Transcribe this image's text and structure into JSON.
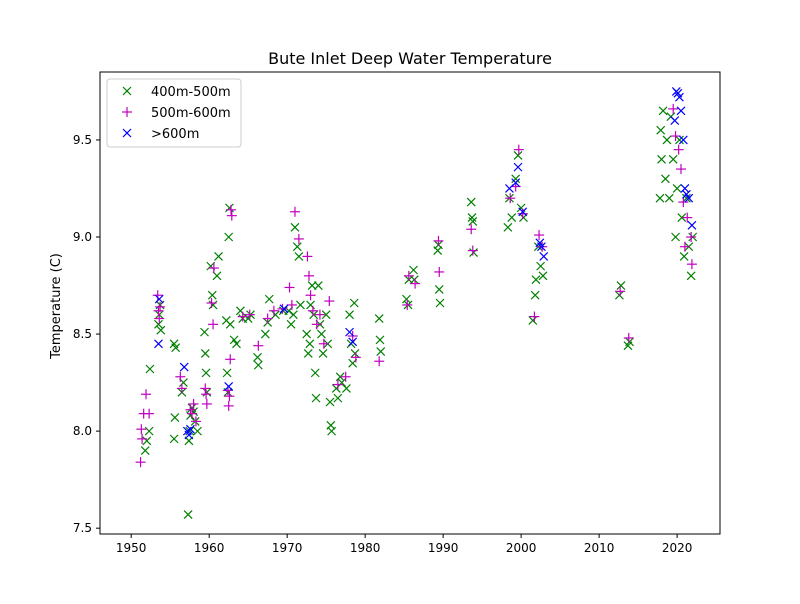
{
  "chart_data": {
    "type": "scatter",
    "title": "Bute Inlet Deep Water Temperature",
    "xlabel": "",
    "ylabel": "Temperature (C)",
    "xlim": [
      1946.0,
      2025.5
    ],
    "ylim": [
      7.47,
      9.85
    ],
    "xticks": [
      "1950",
      "1960",
      "1970",
      "1980",
      "1990",
      "2000",
      "2010",
      "2020"
    ],
    "yticks": [
      "7.5",
      "8.0",
      "8.5",
      "9.0",
      "9.5"
    ],
    "grid": false,
    "legend_position": "top-left",
    "series": [
      {
        "name": "400m-500m",
        "marker": "x",
        "color": "#008000",
        "points": [
          [
            1951.8,
            7.9
          ],
          [
            1952.0,
            7.95
          ],
          [
            1952.3,
            8.0
          ],
          [
            1952.4,
            8.32
          ],
          [
            1953.5,
            8.55
          ],
          [
            1953.6,
            8.6
          ],
          [
            1953.7,
            8.65
          ],
          [
            1953.8,
            8.52
          ],
          [
            1955.5,
            8.45
          ],
          [
            1955.7,
            8.43
          ],
          [
            1955.5,
            7.96
          ],
          [
            1955.6,
            8.07
          ],
          [
            1956.5,
            8.2
          ],
          [
            1956.7,
            8.25
          ],
          [
            1957.3,
            7.57
          ],
          [
            1957.4,
            7.95
          ],
          [
            1957.5,
            8.0
          ],
          [
            1957.6,
            8.08
          ],
          [
            1957.8,
            8.12
          ],
          [
            1958.0,
            8.1
          ],
          [
            1958.2,
            8.05
          ],
          [
            1958.5,
            8.0
          ],
          [
            1959.4,
            8.51
          ],
          [
            1959.5,
            8.4
          ],
          [
            1959.6,
            8.3
          ],
          [
            1959.7,
            8.2
          ],
          [
            1960.2,
            8.85
          ],
          [
            1960.4,
            8.7
          ],
          [
            1960.5,
            8.65
          ],
          [
            1961.0,
            8.8
          ],
          [
            1961.2,
            8.9
          ],
          [
            1962.2,
            8.57
          ],
          [
            1962.3,
            8.3
          ],
          [
            1962.4,
            8.2
          ],
          [
            1962.5,
            9.0
          ],
          [
            1962.6,
            9.15
          ],
          [
            1962.7,
            8.55
          ],
          [
            1963.2,
            8.47
          ],
          [
            1963.5,
            8.45
          ],
          [
            1964.0,
            8.62
          ],
          [
            1964.3,
            8.58
          ],
          [
            1965.0,
            8.58
          ],
          [
            1965.3,
            8.6
          ],
          [
            1966.2,
            8.38
          ],
          [
            1966.3,
            8.34
          ],
          [
            1967.2,
            8.5
          ],
          [
            1967.5,
            8.56
          ],
          [
            1967.7,
            8.68
          ],
          [
            1968.5,
            8.6
          ],
          [
            1969.5,
            8.62
          ],
          [
            1970.2,
            8.62
          ],
          [
            1970.5,
            8.55
          ],
          [
            1970.8,
            8.6
          ],
          [
            1971.0,
            9.05
          ],
          [
            1971.3,
            8.95
          ],
          [
            1971.5,
            8.9
          ],
          [
            1971.7,
            8.65
          ],
          [
            1972.5,
            8.5
          ],
          [
            1972.7,
            8.4
          ],
          [
            1972.9,
            8.45
          ],
          [
            1973.0,
            8.65
          ],
          [
            1973.2,
            8.75
          ],
          [
            1973.4,
            8.6
          ],
          [
            1973.6,
            8.3
          ],
          [
            1973.7,
            8.17
          ],
          [
            1974.0,
            8.75
          ],
          [
            1974.2,
            8.55
          ],
          [
            1974.4,
            8.5
          ],
          [
            1974.6,
            8.4
          ],
          [
            1975.0,
            8.6
          ],
          [
            1975.2,
            8.45
          ],
          [
            1975.5,
            8.15
          ],
          [
            1975.6,
            8.03
          ],
          [
            1975.7,
            8.0
          ],
          [
            1976.3,
            8.22
          ],
          [
            1976.5,
            8.17
          ],
          [
            1976.8,
            8.28
          ],
          [
            1977.0,
            8.25
          ],
          [
            1977.6,
            8.22
          ],
          [
            1978.0,
            8.6
          ],
          [
            1978.2,
            8.45
          ],
          [
            1978.4,
            8.35
          ],
          [
            1978.6,
            8.66
          ],
          [
            1978.7,
            8.4
          ],
          [
            1981.8,
            8.58
          ],
          [
            1981.9,
            8.47
          ],
          [
            1982.0,
            8.41
          ],
          [
            1985.3,
            8.68
          ],
          [
            1985.5,
            8.65
          ],
          [
            1985.6,
            8.78
          ],
          [
            1986.2,
            8.83
          ],
          [
            1986.3,
            8.78
          ],
          [
            1989.3,
            8.93
          ],
          [
            1989.4,
            8.96
          ],
          [
            1989.5,
            8.73
          ],
          [
            1989.6,
            8.66
          ],
          [
            1993.6,
            9.18
          ],
          [
            1993.7,
            9.1
          ],
          [
            1993.8,
            9.08
          ],
          [
            1993.9,
            8.92
          ],
          [
            1998.3,
            9.05
          ],
          [
            1998.5,
            9.2
          ],
          [
            1998.8,
            9.1
          ],
          [
            1999.3,
            9.3
          ],
          [
            1999.6,
            9.42
          ],
          [
            2000.0,
            9.15
          ],
          [
            2000.3,
            9.1
          ],
          [
            2001.5,
            8.57
          ],
          [
            2001.8,
            8.7
          ],
          [
            2001.9,
            8.78
          ],
          [
            2002.2,
            8.95
          ],
          [
            2002.5,
            8.85
          ],
          [
            2002.8,
            8.8
          ],
          [
            2012.6,
            8.7
          ],
          [
            2012.8,
            8.75
          ],
          [
            2013.7,
            8.44
          ],
          [
            2013.9,
            8.46
          ],
          [
            2017.8,
            9.2
          ],
          [
            2017.9,
            9.55
          ],
          [
            2018.0,
            9.4
          ],
          [
            2018.2,
            9.65
          ],
          [
            2018.5,
            9.3
          ],
          [
            2018.7,
            9.5
          ],
          [
            2019.0,
            9.2
          ],
          [
            2019.2,
            9.62
          ],
          [
            2019.5,
            9.4
          ],
          [
            2019.8,
            9.0
          ],
          [
            2020.0,
            9.25
          ],
          [
            2020.3,
            9.5
          ],
          [
            2020.6,
            9.1
          ],
          [
            2020.9,
            8.9
          ],
          [
            2021.2,
            9.2
          ],
          [
            2021.5,
            8.95
          ],
          [
            2021.8,
            8.8
          ],
          [
            2022.0,
            9.0
          ]
        ]
      },
      {
        "name": "500m-600m",
        "marker": "+",
        "color": "#bf00bf",
        "points": [
          [
            1951.2,
            7.84
          ],
          [
            1951.3,
            8.01
          ],
          [
            1951.4,
            7.96
          ],
          [
            1951.6,
            8.09
          ],
          [
            1951.9,
            8.19
          ],
          [
            1952.3,
            8.09
          ],
          [
            1953.4,
            8.7
          ],
          [
            1953.5,
            8.62
          ],
          [
            1953.6,
            8.58
          ],
          [
            1953.7,
            8.64
          ],
          [
            1956.3,
            8.28
          ],
          [
            1956.5,
            8.22
          ],
          [
            1957.6,
            8.11
          ],
          [
            1957.8,
            8.09
          ],
          [
            1958.0,
            8.14
          ],
          [
            1958.3,
            8.05
          ],
          [
            1959.5,
            8.22
          ],
          [
            1959.6,
            8.19
          ],
          [
            1959.7,
            8.14
          ],
          [
            1960.3,
            8.66
          ],
          [
            1960.5,
            8.55
          ],
          [
            1960.6,
            8.84
          ],
          [
            1962.4,
            8.21
          ],
          [
            1962.5,
            8.13
          ],
          [
            1962.6,
            8.18
          ],
          [
            1962.7,
            8.37
          ],
          [
            1962.8,
            9.14
          ],
          [
            1962.9,
            9.11
          ],
          [
            1964.3,
            8.59
          ],
          [
            1965.2,
            8.6
          ],
          [
            1966.3,
            8.44
          ],
          [
            1967.5,
            8.58
          ],
          [
            1968.3,
            8.62
          ],
          [
            1969.4,
            8.63
          ],
          [
            1970.3,
            8.74
          ],
          [
            1970.6,
            8.65
          ],
          [
            1971.0,
            9.13
          ],
          [
            1971.5,
            8.99
          ],
          [
            1972.6,
            8.9
          ],
          [
            1972.8,
            8.8
          ],
          [
            1973.0,
            8.7
          ],
          [
            1973.3,
            8.62
          ],
          [
            1973.8,
            8.55
          ],
          [
            1974.2,
            8.6
          ],
          [
            1974.7,
            8.45
          ],
          [
            1975.4,
            8.67
          ],
          [
            1976.5,
            8.24
          ],
          [
            1977.5,
            8.28
          ],
          [
            1978.4,
            8.49
          ],
          [
            1978.8,
            8.38
          ],
          [
            1981.8,
            8.36
          ],
          [
            1985.4,
            8.65
          ],
          [
            1985.6,
            8.8
          ],
          [
            1986.4,
            8.76
          ],
          [
            1989.4,
            8.98
          ],
          [
            1989.5,
            8.82
          ],
          [
            1993.6,
            9.04
          ],
          [
            1993.8,
            8.93
          ],
          [
            1998.6,
            9.2
          ],
          [
            1999.3,
            9.26
          ],
          [
            1999.7,
            9.45
          ],
          [
            2000.2,
            9.12
          ],
          [
            2001.7,
            8.59
          ],
          [
            2002.3,
            9.01
          ],
          [
            2002.7,
            8.95
          ],
          [
            2012.7,
            8.72
          ],
          [
            2013.8,
            8.48
          ],
          [
            2019.5,
            9.66
          ],
          [
            2019.8,
            9.52
          ],
          [
            2020.2,
            9.45
          ],
          [
            2020.5,
            9.35
          ],
          [
            2020.8,
            9.18
          ],
          [
            2021.0,
            8.95
          ],
          [
            2021.3,
            9.1
          ],
          [
            2021.8,
            9.0
          ],
          [
            2021.9,
            8.86
          ]
        ]
      },
      {
        "name": ">600m",
        "marker": "x",
        "color": "#0000ff",
        "points": [
          [
            1953.5,
            8.45
          ],
          [
            1953.6,
            8.68
          ],
          [
            1956.8,
            8.33
          ],
          [
            1957.2,
            8.0
          ],
          [
            1957.4,
            7.98
          ],
          [
            1957.6,
            8.01
          ],
          [
            1962.5,
            8.23
          ],
          [
            1969.6,
            8.63
          ],
          [
            1978.0,
            8.51
          ],
          [
            1978.4,
            8.46
          ],
          [
            1998.5,
            9.25
          ],
          [
            1999.3,
            9.28
          ],
          [
            1999.6,
            9.36
          ],
          [
            2000.2,
            9.13
          ],
          [
            2002.4,
            8.97
          ],
          [
            2002.6,
            8.95
          ],
          [
            2002.9,
            8.9
          ],
          [
            2019.7,
            9.6
          ],
          [
            2019.9,
            9.75
          ],
          [
            2020.1,
            9.74
          ],
          [
            2020.3,
            9.72
          ],
          [
            2020.5,
            9.65
          ],
          [
            2020.8,
            9.5
          ],
          [
            2021.0,
            9.25
          ],
          [
            2021.2,
            9.22
          ],
          [
            2021.5,
            9.2
          ],
          [
            2021.9,
            9.06
          ]
        ]
      }
    ]
  }
}
